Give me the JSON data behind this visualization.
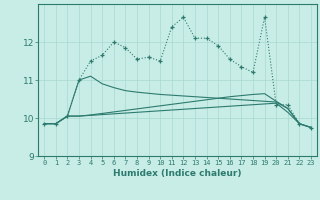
{
  "xlabel": "Humidex (Indice chaleur)",
  "ylabel": "",
  "xlim": [
    -0.5,
    23.5
  ],
  "ylim": [
    9.0,
    13.0
  ],
  "yticks": [
    9,
    10,
    11,
    12
  ],
  "xticks": [
    0,
    1,
    2,
    3,
    4,
    5,
    6,
    7,
    8,
    9,
    10,
    11,
    12,
    13,
    14,
    15,
    16,
    17,
    18,
    19,
    20,
    21,
    22,
    23
  ],
  "bg_color": "#c8ece6",
  "line_color": "#2d7b6f",
  "grid_color": "#a8d8d0",
  "series": {
    "line1_x": [
      0,
      1,
      2,
      3,
      4,
      5,
      6,
      7,
      8,
      9,
      10,
      11,
      12,
      13,
      14,
      15,
      16,
      17,
      18,
      19,
      20,
      21,
      22,
      23
    ],
    "line1_y": [
      9.85,
      9.85,
      10.05,
      11.0,
      11.5,
      11.65,
      12.0,
      11.85,
      11.55,
      11.6,
      11.5,
      12.4,
      12.65,
      12.1,
      12.1,
      11.9,
      11.55,
      11.35,
      11.2,
      12.65,
      10.35,
      10.35,
      9.85,
      9.75
    ],
    "line2_x": [
      0,
      1,
      2,
      3,
      4,
      5,
      6,
      7,
      8,
      9,
      10,
      11,
      12,
      13,
      14,
      15,
      16,
      17,
      18,
      19,
      20,
      21,
      22,
      23
    ],
    "line2_y": [
      9.85,
      9.85,
      10.05,
      11.0,
      11.1,
      10.9,
      10.8,
      10.72,
      10.68,
      10.65,
      10.62,
      10.6,
      10.58,
      10.56,
      10.54,
      10.52,
      10.5,
      10.48,
      10.46,
      10.44,
      10.42,
      10.25,
      9.85,
      9.75
    ],
    "line3_x": [
      0,
      1,
      2,
      3,
      4,
      5,
      6,
      7,
      8,
      9,
      10,
      11,
      12,
      13,
      14,
      15,
      16,
      17,
      18,
      19,
      20,
      21,
      22,
      23
    ],
    "line3_y": [
      9.85,
      9.85,
      10.05,
      10.05,
      10.08,
      10.12,
      10.16,
      10.2,
      10.24,
      10.28,
      10.32,
      10.36,
      10.4,
      10.44,
      10.48,
      10.52,
      10.56,
      10.59,
      10.62,
      10.64,
      10.44,
      10.25,
      9.85,
      9.75
    ],
    "line4_x": [
      0,
      1,
      2,
      3,
      4,
      5,
      6,
      7,
      8,
      9,
      10,
      11,
      12,
      13,
      14,
      15,
      16,
      17,
      18,
      19,
      20,
      21,
      22,
      23
    ],
    "line4_y": [
      9.85,
      9.85,
      10.05,
      10.05,
      10.07,
      10.09,
      10.11,
      10.13,
      10.15,
      10.17,
      10.19,
      10.21,
      10.23,
      10.25,
      10.27,
      10.29,
      10.31,
      10.33,
      10.35,
      10.37,
      10.39,
      10.15,
      9.85,
      9.75
    ]
  }
}
